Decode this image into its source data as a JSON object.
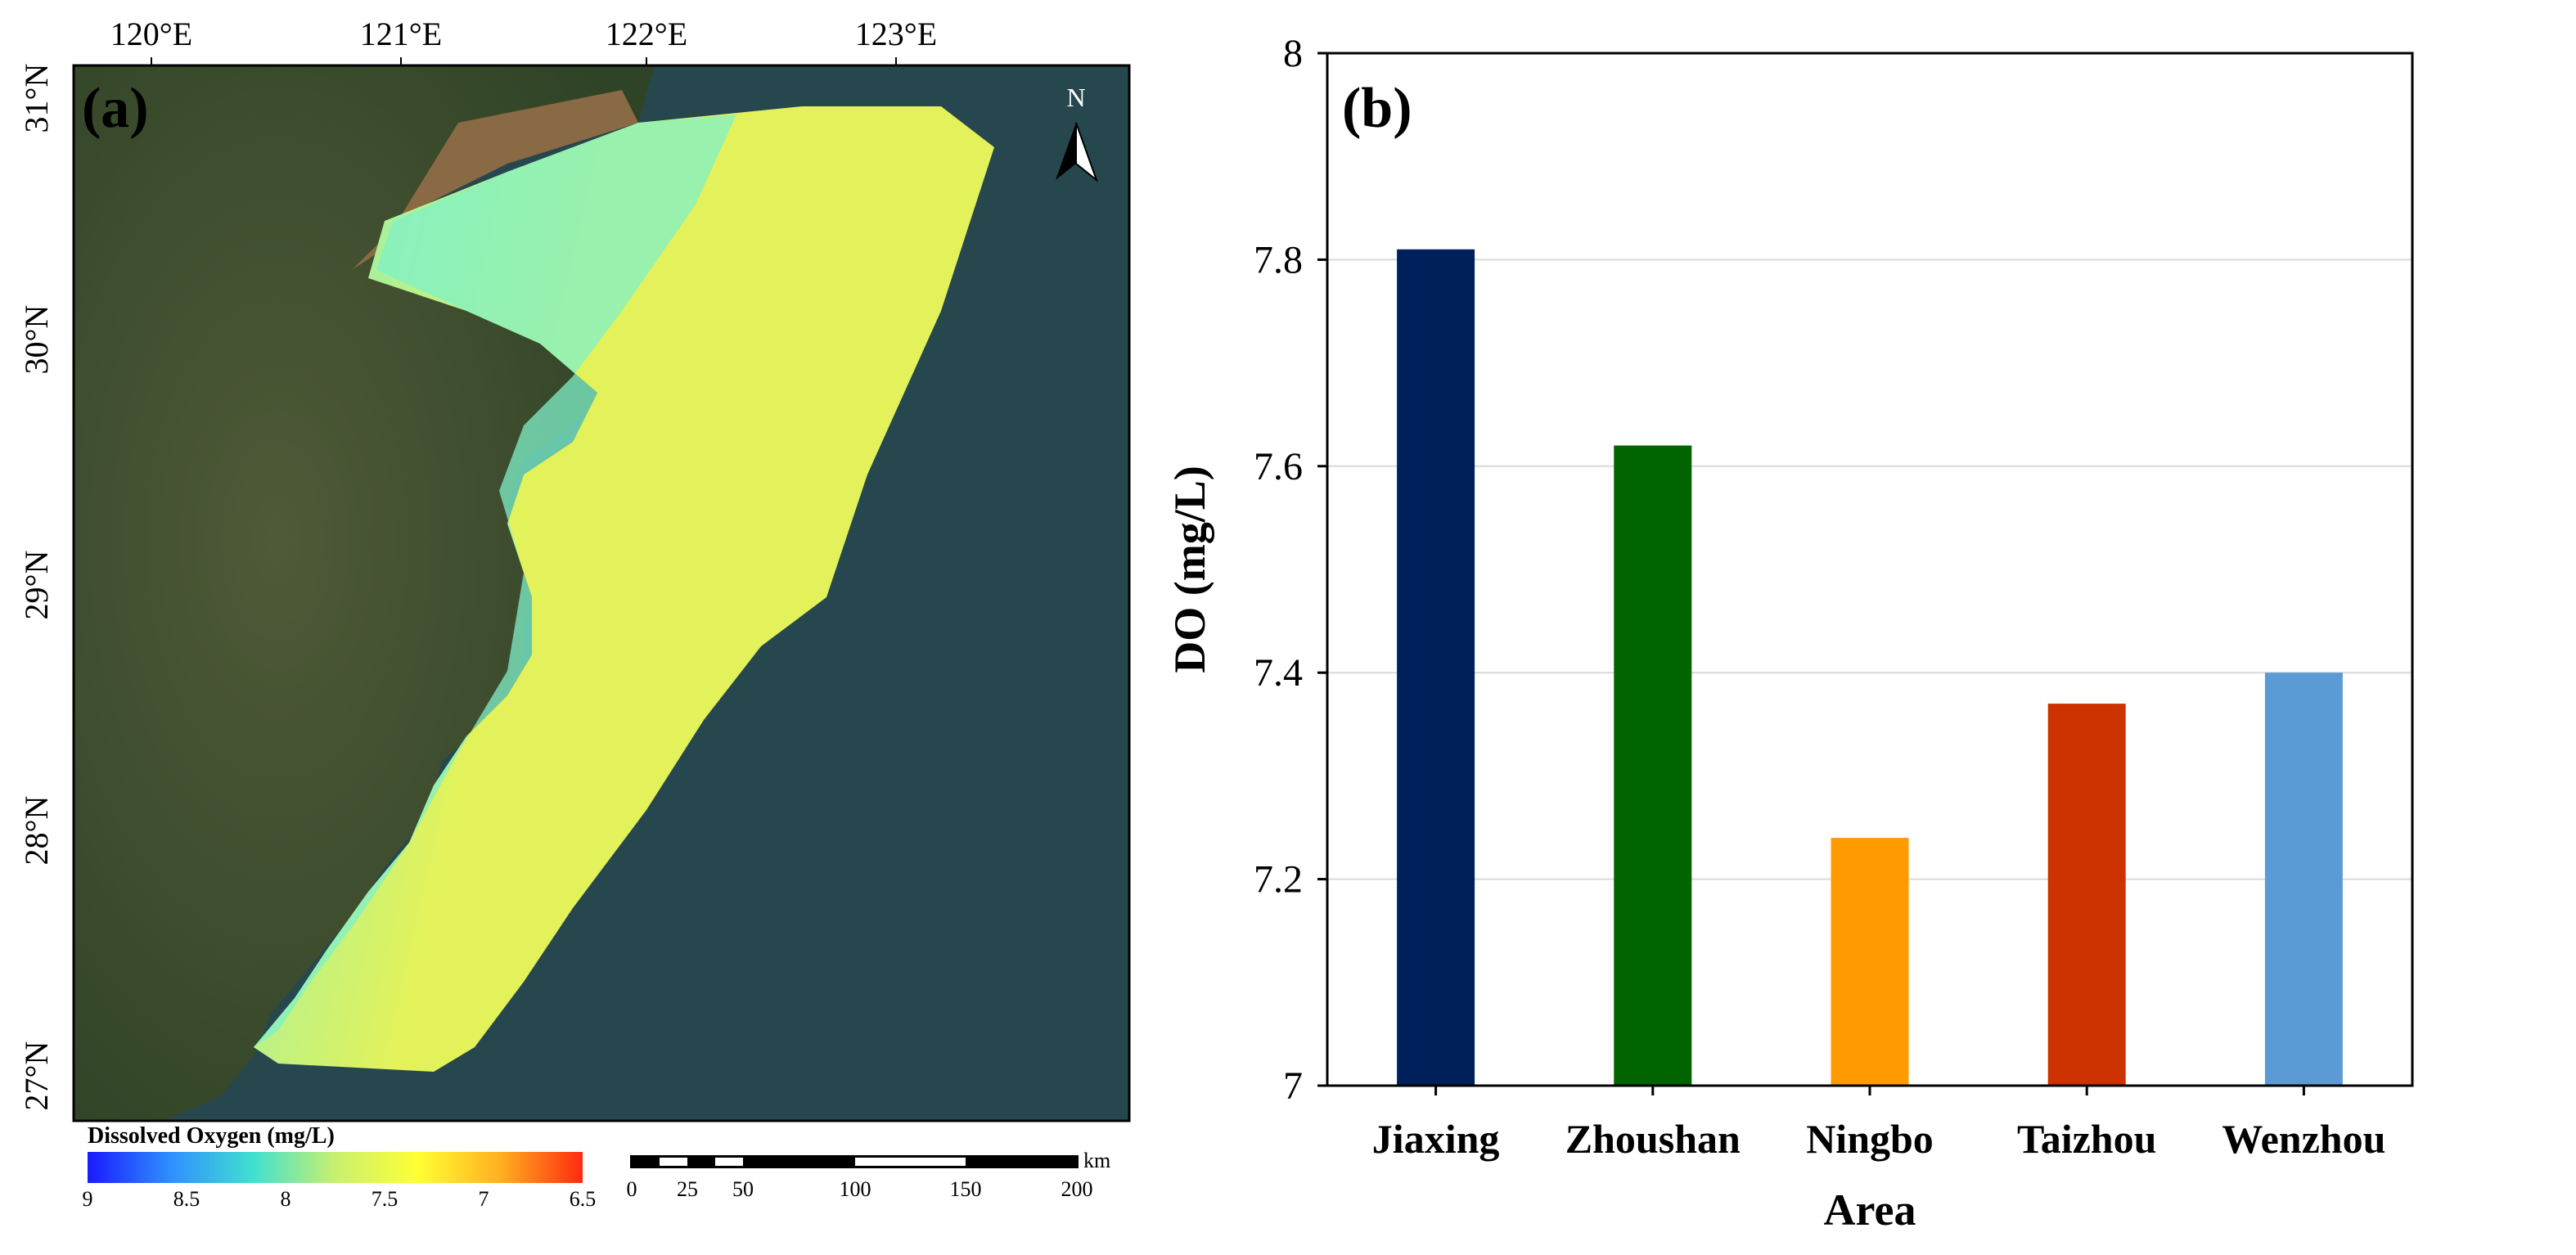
{
  "panel_a": {
    "label": "(a)",
    "lon_ticks": [
      "120°E",
      "121°E",
      "122°E",
      "123°E"
    ],
    "lat_ticks": [
      "31°N",
      "30°N",
      "29°N",
      "28°N",
      "27°N"
    ],
    "north_arrow": "N",
    "colorbar": {
      "title": "Dissolved Oxygen (mg/L)",
      "ticks": [
        "9",
        "8.5",
        "8",
        "7.5",
        "7",
        "6.5"
      ],
      "colors": [
        "#1a1aff",
        "#2f8fff",
        "#3fe0d0",
        "#c8f070",
        "#ffff33",
        "#ffb020",
        "#ff2a10"
      ]
    },
    "scalebar": {
      "unit": "km",
      "ticks": [
        "0",
        "25",
        "50",
        "100",
        "150",
        "200"
      ]
    },
    "colors": {
      "sea": "#27474f",
      "land": "#4f5a38",
      "land_dark": "#2f4326",
      "estuary": "#8a6a44",
      "do_yellow": "#e3f25a",
      "do_cyan": "#7ff0c8"
    }
  },
  "chart_data": {
    "type": "bar",
    "panel_label": "(b)",
    "title": "",
    "xlabel": "Area",
    "ylabel": "DO (mg/L)",
    "categories": [
      "Jiaxing",
      "Zhoushan",
      "Ningbo",
      "Taizhou",
      "Wenzhou"
    ],
    "values": [
      7.81,
      7.62,
      7.24,
      7.37,
      7.4
    ],
    "colors": [
      "#00205b",
      "#006400",
      "#ff9a00",
      "#cc3300",
      "#5b9bd5"
    ],
    "ylim": [
      7,
      8
    ],
    "yticks": [
      "7",
      "7.2",
      "7.4",
      "7.6",
      "7.8",
      "8"
    ],
    "grid": true
  }
}
